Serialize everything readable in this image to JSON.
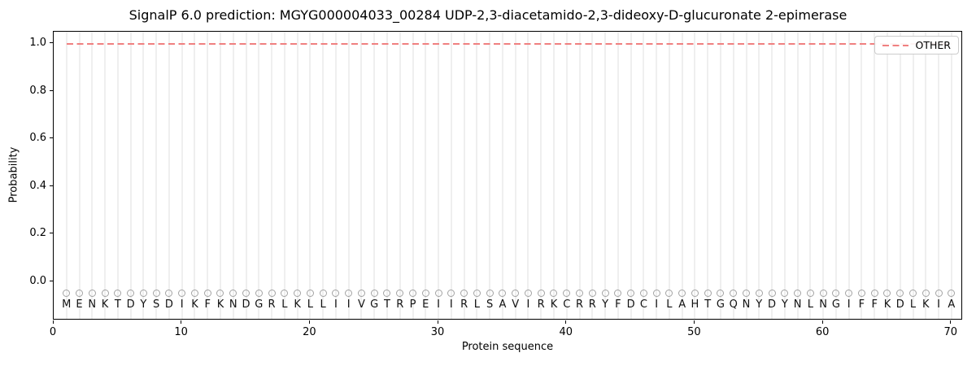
{
  "title": "SignalP 6.0 prediction: MGYG000004033_00284 UDP-2,3-diacetamido-2,3-dideoxy-D-glucuronate 2-epimerase",
  "chart_data": {
    "type": "line",
    "title": "SignalP 6.0 prediction: MGYG000004033_00284 UDP-2,3-diacetamido-2,3-dideoxy-D-glucuronate 2-epimerase",
    "xlabel": "Protein sequence",
    "ylabel": "Probability",
    "xlim": [
      0,
      70.9
    ],
    "ylim": [
      -0.164,
      1.051
    ],
    "x_ticks": [
      0,
      10,
      20,
      30,
      40,
      50,
      60,
      70
    ],
    "y_ticks": [
      "0.0",
      "0.2",
      "0.4",
      "0.6",
      "0.8",
      "1.0"
    ],
    "grid": "vertical gridline at every residue position 1-70",
    "legend_position": "upper right",
    "series": [
      {
        "name": "OTHER",
        "style": "dashed",
        "color": "#f08080",
        "x_start": 1,
        "x_end": 70,
        "constant_y": 1.0,
        "note": "OTHER probability is constant at 1.0 over all 70 residues"
      }
    ],
    "sequence": "MENKTDYSDIKFKNDGRLKLLIIVGTRPEIIRLSAVIRKCRRYFDCILAHTGQNYDYNLNGIFFKDLKIA",
    "n_residues": 70,
    "residue_markers": {
      "symbol": "open-circle",
      "y": -0.05,
      "color": "#a3a3a3"
    },
    "residue_label_y": -0.1
  },
  "colors": {
    "other_line": "#f08080",
    "gridline": "#efefef",
    "marker_edge": "#a3a3a3",
    "spine": "#000000",
    "legend_border": "#cccccc",
    "background": "#ffffff"
  }
}
